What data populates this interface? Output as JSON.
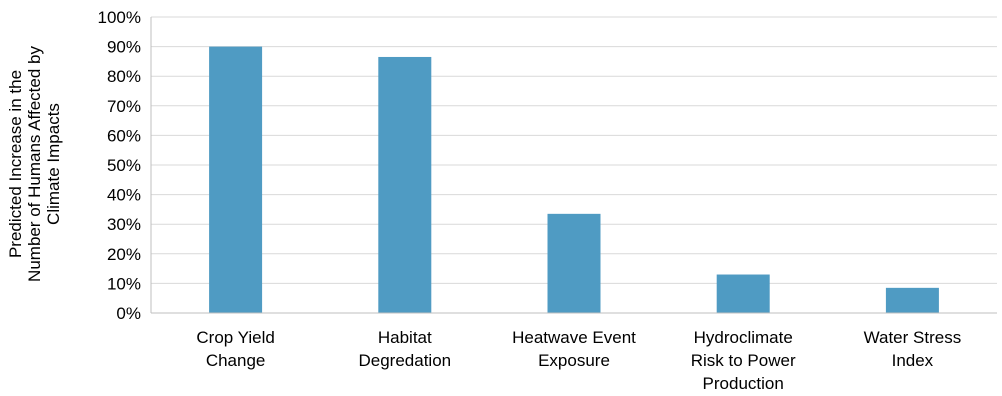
{
  "chart_data": {
    "type": "bar",
    "title": "",
    "xlabel": "",
    "ylabel": [
      "Predicted Increase in the",
      "Number of Humans Affected by",
      "Climate Impacts"
    ],
    "categories": [
      [
        "Crop Yield",
        "Change"
      ],
      [
        "Habitat",
        "Degredation"
      ],
      [
        "Heatwave Event",
        "Exposure"
      ],
      [
        "Hydroclimate",
        "Risk to Power",
        "Production"
      ],
      [
        "Water Stress",
        "Index"
      ]
    ],
    "values": [
      90,
      86.5,
      33.5,
      13,
      8.5
    ],
    "ylim": [
      0,
      100
    ],
    "yticks": [
      0,
      10,
      20,
      30,
      40,
      50,
      60,
      70,
      80,
      90,
      100
    ],
    "ytick_labels": [
      "0%",
      "10%",
      "20%",
      "30%",
      "40%",
      "50%",
      "60%",
      "70%",
      "80%",
      "90%",
      "100%"
    ],
    "grid": true,
    "legend": "none",
    "bar_color": "#4f9bc3",
    "grid_color": "#d9d9d9",
    "axis_color": "#bfbfbf"
  }
}
